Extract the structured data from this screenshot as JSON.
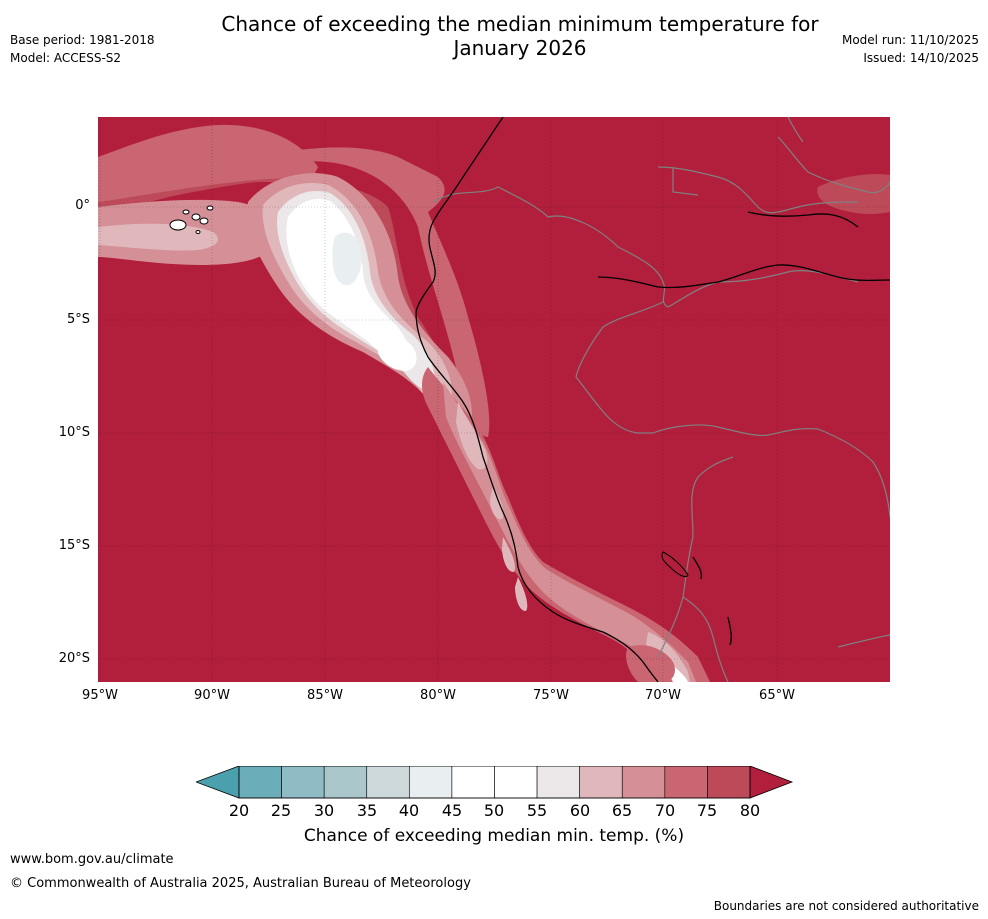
{
  "header": {
    "title_line1": "Chance of exceeding the median minimum temperature for",
    "title_line2": "January 2026",
    "base_period": "Base period: 1981-2018",
    "model": "Model: ACCESS-S2",
    "model_run": "Model run: 11/10/2025",
    "issued": "Issued: 14/10/2025"
  },
  "map": {
    "lat_labels": [
      "0°",
      "5°S",
      "10°S",
      "15°S",
      "20°S"
    ],
    "lon_labels": [
      "95°W",
      "90°W",
      "85°W",
      "80°W",
      "75°W",
      "70°W",
      "65°W"
    ]
  },
  "colorbar": {
    "ticks": [
      "20",
      "25",
      "30",
      "35",
      "40",
      "45",
      "50",
      "55",
      "60",
      "65",
      "70",
      "75",
      "80"
    ],
    "colors": [
      "#4aa0ad",
      "#6badb8",
      "#8ebbc4",
      "#aac8cc",
      "#cdd8db",
      "#e9eef0",
      "#ffffff",
      "#ffffff",
      "#ece8e9",
      "#e0b8bc",
      "#d49096",
      "#c96672",
      "#bd4a58",
      "#b21f3c"
    ],
    "label": "Chance of exceeding median min. temp. (%)"
  },
  "footer": {
    "url": "www.bom.gov.au/climate",
    "copyright": "© Commonwealth of Australia 2025, Australian Bureau of Meteorology",
    "disclaimer": "Boundaries are not considered authoritative"
  }
}
